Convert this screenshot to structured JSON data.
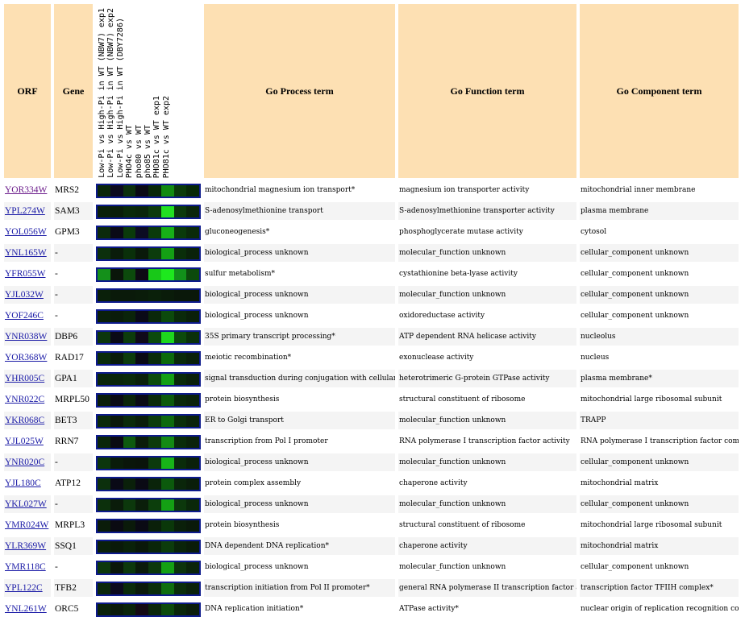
{
  "headers": {
    "orf": "ORF",
    "gene": "Gene",
    "process": "Go Process term",
    "function": "Go Function term",
    "component": "Go Component term",
    "conditions": [
      "Low-Pi vs High-Pi in WT (NBW7) exp1",
      "Low-Pi vs High-Pi in WT (NBW7) exp2",
      "Low-Pi vs High-Pi in WT (DBY7286)",
      "PHO4c vs WT",
      "pho80 vs WT",
      "pho85 vs WT",
      "PHO81c vs WT exp1",
      "PHO81c vs WT exp2"
    ]
  },
  "rows": [
    {
      "orf": "YOR334W",
      "gene": "MRS2",
      "process": "mitochondrial magnesium ion transport*",
      "function": "magnesium ion transporter activity",
      "component": "mitochondrial inner membrane",
      "heat": [
        "#0a260a",
        "#0c0a1e",
        "#0c300c",
        "#0a0a14",
        "#082808",
        "#118a11",
        "#0a3a0a",
        "#062806"
      ]
    },
    {
      "orf": "YPL274W",
      "gene": "SAM3",
      "process": "S-adenosylmethionine transport",
      "function": "S-adenosylmethionine transporter activity",
      "component": "plasma membrane",
      "heat": [
        "#0a200a",
        "#0a1e0a",
        "#0a2a0a",
        "#0a260a",
        "#0c3a0c",
        "#22e022",
        "#0c3a0c",
        "#0a260a"
      ]
    },
    {
      "orf": "YOL056W",
      "gene": "GPM3",
      "process": "gluconeogenesis*",
      "function": "phosphoglycerate mutase activity",
      "component": "cytosol",
      "heat": [
        "#0c2a0c",
        "#0a0a16",
        "#0a3a0a",
        "#0c0c22",
        "#0a3a0a",
        "#17b017",
        "#0a3a0a",
        "#0a2a0a"
      ]
    },
    {
      "orf": "YNL165W",
      "gene": "-",
      "process": "biological_process unknown",
      "function": "molecular_function unknown",
      "component": "cellular_component unknown",
      "heat": [
        "#0c300c",
        "#0a1c0a",
        "#0a300a",
        "#0a1a0a",
        "#0c3c0c",
        "#14a014",
        "#0a2e0a",
        "#0a220a"
      ]
    },
    {
      "orf": "YFR055W",
      "gene": "-",
      "process": "sulfur metabolism*",
      "function": "cystathionine beta-lyase activity",
      "component": "cellular_component unknown",
      "heat": [
        "#14901a",
        "#0a160a",
        "#0c4a0c",
        "#0e0a14",
        "#18c818",
        "#1ee81e",
        "#12901a",
        "#0c4a0c"
      ]
    },
    {
      "orf": "YJL032W",
      "gene": "-",
      "process": "biological_process unknown",
      "function": "molecular_function unknown",
      "component": "cellular_component unknown",
      "heat": [
        "#0a200a",
        "#0a1a0a",
        "#0a1a0a",
        "#0a1c0a",
        "#0a200a",
        "#0a1c0a",
        "#0a180a",
        "#0a180a"
      ]
    },
    {
      "orf": "YOF246C",
      "gene": "-",
      "process": "biological_process unknown",
      "function": "oxidoreductase activity",
      "component": "cellular_component unknown",
      "heat": [
        "#0a200a",
        "#0a1c0a",
        "#0a240a",
        "#0a0a18",
        "#0a280a",
        "#0c4a0c",
        "#0a2a0a",
        "#0a200a"
      ]
    },
    {
      "orf": "YNR038W",
      "gene": "DBP6",
      "process": "35S primary transcript processing*",
      "function": "ATP dependent RNA helicase activity",
      "component": "nucleolus",
      "heat": [
        "#0c360c",
        "#0a0a16",
        "#0c3c0c",
        "#100a1a",
        "#0c4a0c",
        "#1ed61e",
        "#0c4a0c",
        "#0a300a"
      ]
    },
    {
      "orf": "YOR368W",
      "gene": "RAD17",
      "process": "meiotic recombination*",
      "function": "exonuclease activity",
      "component": "nucleus",
      "heat": [
        "#0a2c0a",
        "#0a1c0a",
        "#0c3c0c",
        "#0a0a14",
        "#0a2c0a",
        "#0c6a0c",
        "#0a2a0a",
        "#0a200a"
      ]
    },
    {
      "orf": "YHR005C",
      "gene": "GPA1",
      "process": "signal transduction during conjugation with cellular fusion",
      "function": "heterotrimeric G-protein GTPase activity",
      "component": "plasma membrane*",
      "heat": [
        "#0a260a",
        "#0a260a",
        "#0a2a0a",
        "#0a200a",
        "#0c4c0c",
        "#14a014",
        "#0a2a0a",
        "#0a200a"
      ]
    },
    {
      "orf": "YNR022C",
      "gene": "MRPL50",
      "process": "protein biosynthesis",
      "function": "structural constituent of ribosome",
      "component": "mitochondrial large ribosomal subunit",
      "heat": [
        "#0a1e0a",
        "#0a0a14",
        "#0a240a",
        "#0a0a16",
        "#0a2a0a",
        "#0c5a0c",
        "#0a280a",
        "#0a220a"
      ]
    },
    {
      "orf": "YKR068C",
      "gene": "BET3",
      "process": "ER to Golgi transport",
      "function": "molecular_function unknown",
      "component": "TRAPP",
      "heat": [
        "#0a2a0a",
        "#0a180a",
        "#0a2a0a",
        "#0a1e0a",
        "#0c3c0c",
        "#0e6a0e",
        "#0a2e0a",
        "#0a220a"
      ]
    },
    {
      "orf": "YJL025W",
      "gene": "RRN7",
      "process": "transcription from Pol I promoter",
      "function": "RNA polymerase I transcription factor activity",
      "component": "RNA polymerase I transcription factor complex",
      "heat": [
        "#0a260a",
        "#0a0a12",
        "#0e5a0e",
        "#0a1c0a",
        "#0c3a0c",
        "#148a14",
        "#0a2c0a",
        "#0a220a"
      ]
    },
    {
      "orf": "YNR020C",
      "gene": "-",
      "process": "biological_process unknown",
      "function": "molecular_function unknown",
      "component": "cellular_component unknown",
      "heat": [
        "#0c360c",
        "#0a1c0a",
        "#0a160a",
        "#0a140a",
        "#0c3a0c",
        "#18b418",
        "#0a2c0a",
        "#0a200a"
      ]
    },
    {
      "orf": "YJL180C",
      "gene": "ATP12",
      "process": "protein complex assembly",
      "function": "chaperone activity",
      "component": "mitochondrial matrix",
      "heat": [
        "#0c300c",
        "#0a0a16",
        "#0a200a",
        "#0a0a14",
        "#0a240a",
        "#0c5a0c",
        "#0a260a",
        "#0a1e0a"
      ]
    },
    {
      "orf": "YKL027W",
      "gene": "-",
      "process": "biological_process unknown",
      "function": "molecular_function unknown",
      "component": "cellular_component unknown",
      "heat": [
        "#0c300c",
        "#0a1c0a",
        "#0c380c",
        "#0a1e0a",
        "#0c3e0c",
        "#14a014",
        "#0c380c",
        "#0a280a"
      ]
    },
    {
      "orf": "YMR024W",
      "gene": "MRPL3",
      "process": "protein biosynthesis",
      "function": "structural constituent of ribosome",
      "component": "mitochondrial large ribosomal subunit",
      "heat": [
        "#0a1c0a",
        "#0a0a12",
        "#0a1a0a",
        "#0a0a14",
        "#0a200a",
        "#0a380a",
        "#0a200a",
        "#0a1a0a"
      ]
    },
    {
      "orf": "YLR369W",
      "gene": "SSQ1",
      "process": "DNA dependent DNA replication*",
      "function": "chaperone activity",
      "component": "mitochondrial matrix",
      "heat": [
        "#0a200a",
        "#0a1a0a",
        "#0a220a",
        "#0a180a",
        "#0a260a",
        "#0c3c0c",
        "#0a240a",
        "#0a1c0a"
      ]
    },
    {
      "orf": "YMR118C",
      "gene": "-",
      "process": "biological_process unknown",
      "function": "molecular_function unknown",
      "component": "cellular_component unknown",
      "heat": [
        "#0c380c",
        "#0a160a",
        "#0c380c",
        "#0a1a0a",
        "#0c380c",
        "#14a014",
        "#0c340c",
        "#0a240a"
      ]
    },
    {
      "orf": "YPL122C",
      "gene": "TFB2",
      "process": "transcription initiation from Pol II promoter*",
      "function": "general RNA polymerase II transcription factor activity",
      "component": "transcription factor TFIIH complex*",
      "heat": [
        "#0a280a",
        "#0c0a1e",
        "#0a2c0a",
        "#0a1a0a",
        "#0a2e0a",
        "#0e6e0e",
        "#0a2e0a",
        "#0a220a"
      ]
    },
    {
      "orf": "YNL261W",
      "gene": "ORC5",
      "process": "DNA replication initiation*",
      "function": "ATPase activity*",
      "component": "nuclear origin of replication recognition complex",
      "heat": [
        "#0a220a",
        "#0a1a0a",
        "#0a240a",
        "#140a14",
        "#0a260a",
        "#0c4a0c",
        "#0a260a",
        "#0a1c0a"
      ]
    }
  ]
}
